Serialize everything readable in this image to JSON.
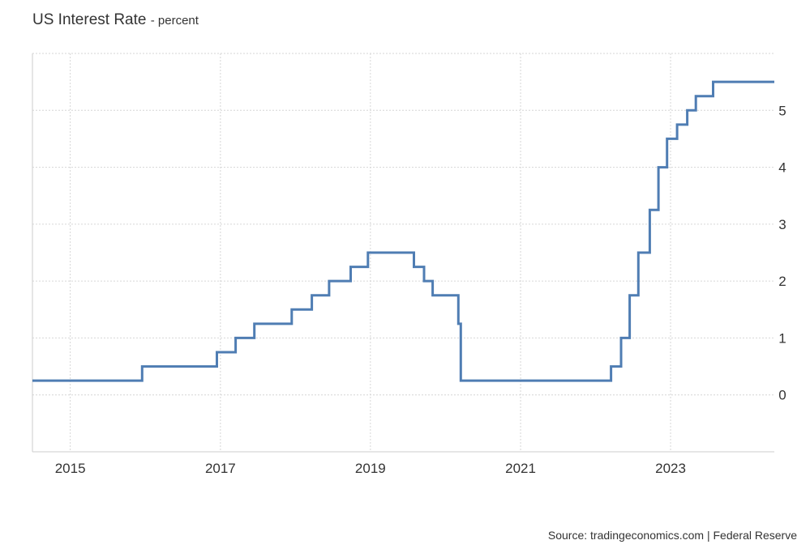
{
  "header": {
    "title": "US Interest Rate",
    "subtitle": "- percent"
  },
  "footer": {
    "source": "Source: tradingeconomics.com | Federal Reserve"
  },
  "colors": {
    "line": "#4f7db3",
    "grid": "#d6d6d6",
    "axis": "#cccccc",
    "text": "#333333"
  },
  "chart_data": {
    "type": "line",
    "step": true,
    "title": "US Interest Rate",
    "subtitle": "percent",
    "xlabel": "",
    "ylabel": "",
    "xlim": [
      "2014-07-01",
      "2024-05-20"
    ],
    "ylim": [
      -1,
      6
    ],
    "grid": true,
    "legend": "none",
    "x_ticks": [
      "2015",
      "2017",
      "2019",
      "2021",
      "2023"
    ],
    "y_ticks": [
      0,
      1,
      2,
      3,
      4,
      5
    ],
    "y_axis_side": "right",
    "series": [
      {
        "x": [
          "2014-07-01",
          "2015-12-17",
          "2016-12-15",
          "2017-03-16",
          "2017-06-15",
          "2017-12-14",
          "2018-03-22",
          "2018-06-14",
          "2018-09-27",
          "2018-12-20",
          "2019-08-01",
          "2019-09-19",
          "2019-10-31",
          "2020-03-04",
          "2020-03-16",
          "2022-03-17",
          "2022-05-05",
          "2022-06-16",
          "2022-07-28",
          "2022-09-22",
          "2022-11-03",
          "2022-12-15",
          "2023-02-02",
          "2023-03-23",
          "2023-05-04",
          "2023-07-27",
          "2024-05-20"
        ],
        "values": [
          0.25,
          0.5,
          0.75,
          1.0,
          1.25,
          1.5,
          1.75,
          2.0,
          2.25,
          2.5,
          2.25,
          2.0,
          1.75,
          1.25,
          0.25,
          0.5,
          1.0,
          1.75,
          2.5,
          3.25,
          4.0,
          4.5,
          4.75,
          5.0,
          5.25,
          5.5,
          5.5
        ]
      }
    ]
  }
}
